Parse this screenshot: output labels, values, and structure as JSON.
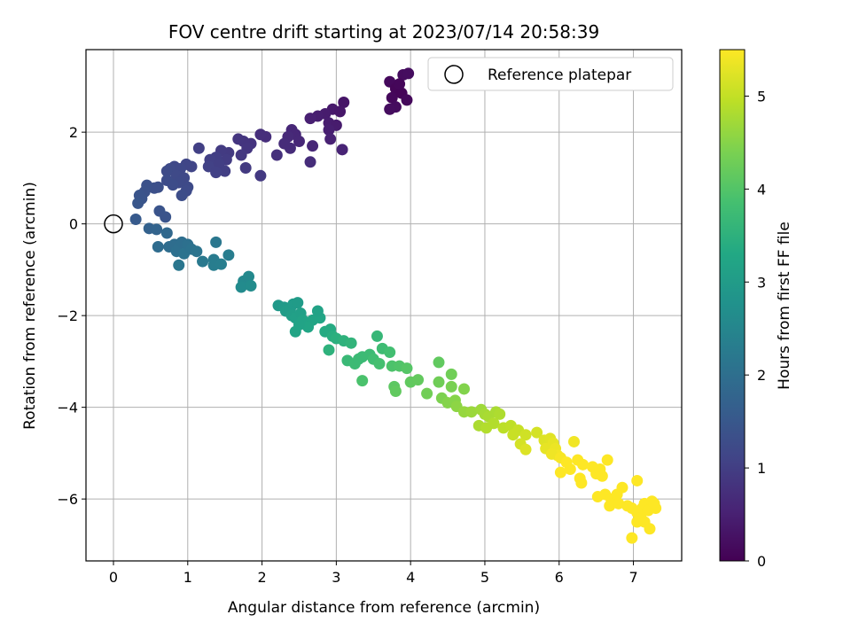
{
  "chart_data": {
    "type": "scatter",
    "title": "FOV centre drift starting at 2023/07/14 20:58:39",
    "xlabel": "Angular distance from reference (arcmin)",
    "ylabel": "Rotation from reference (arcmin)",
    "xlim": [
      -0.37,
      7.65
    ],
    "ylim": [
      -7.35,
      3.8
    ],
    "xticks": [
      0,
      1,
      2,
      3,
      4,
      5,
      6,
      7
    ],
    "yticks": [
      2,
      0,
      -2,
      -4,
      -6
    ],
    "xtick_labels": [
      "0",
      "1",
      "2",
      "3",
      "4",
      "5",
      "6",
      "7"
    ],
    "ytick_labels": [
      "2",
      "0",
      "−2",
      "−4",
      "−6"
    ],
    "grid": true,
    "legend": {
      "position": "top-right",
      "entries": [
        "Reference platepar"
      ]
    },
    "colorbar": {
      "label": "Hours from first FF file",
      "range": [
        0,
        5.5
      ],
      "ticks": [
        0,
        1,
        2,
        3,
        4,
        5
      ],
      "tick_labels": [
        "0",
        "1",
        "2",
        "3",
        "4",
        "5"
      ],
      "colormap": "viridis"
    },
    "reference_point": {
      "x": 0,
      "y": 0,
      "name": "Reference platepar"
    },
    "series": [
      {
        "columns": [
          "x",
          "y",
          "hours"
        ],
        "points": [
          [
            3.72,
            3.1
          ],
          [
            3.9,
            3.25
          ],
          [
            3.97,
            3.28
          ],
          [
            3.8,
            2.95
          ],
          [
            3.75,
            2.75
          ],
          [
            3.88,
            2.85
          ],
          [
            3.8,
            2.55
          ],
          [
            3.95,
            2.7
          ],
          [
            3.72,
            2.5
          ],
          [
            3.85,
            3.05
          ],
          [
            3.1,
            2.65
          ],
          [
            2.95,
            2.5
          ],
          [
            3.05,
            2.45
          ],
          [
            2.85,
            2.4
          ],
          [
            2.75,
            2.35
          ],
          [
            2.65,
            2.3
          ],
          [
            2.9,
            2.2
          ],
          [
            3.0,
            2.15
          ],
          [
            2.9,
            2.05
          ],
          [
            2.92,
            1.85
          ],
          [
            3.08,
            1.62
          ],
          [
            2.4,
            2.05
          ],
          [
            2.45,
            1.95
          ],
          [
            2.35,
            1.9
          ],
          [
            2.5,
            1.8
          ],
          [
            2.3,
            1.75
          ],
          [
            2.38,
            1.65
          ],
          [
            2.68,
            1.7
          ],
          [
            2.2,
            1.5
          ],
          [
            2.65,
            1.35
          ],
          [
            2.05,
            1.9
          ],
          [
            1.98,
            1.95
          ],
          [
            1.85,
            1.75
          ],
          [
            1.75,
            1.8
          ],
          [
            1.68,
            1.85
          ],
          [
            1.8,
            1.65
          ],
          [
            1.72,
            1.5
          ],
          [
            1.78,
            1.22
          ],
          [
            1.98,
            1.05
          ],
          [
            1.55,
            1.55
          ],
          [
            1.45,
            1.6
          ],
          [
            1.52,
            1.4
          ],
          [
            1.38,
            1.45
          ],
          [
            1.3,
            1.4
          ],
          [
            1.42,
            1.3
          ],
          [
            1.28,
            1.25
          ],
          [
            1.5,
            1.15
          ],
          [
            1.38,
            1.12
          ],
          [
            1.15,
            1.65
          ],
          [
            1.05,
            1.25
          ],
          [
            0.98,
            1.3
          ],
          [
            0.9,
            1.2
          ],
          [
            0.82,
            1.25
          ],
          [
            0.76,
            1.2
          ],
          [
            0.72,
            1.15
          ],
          [
            0.85,
            1.05
          ],
          [
            0.95,
            1.0
          ],
          [
            0.72,
            0.95
          ],
          [
            0.88,
            0.9
          ],
          [
            0.8,
            0.85
          ],
          [
            1.0,
            0.8
          ],
          [
            0.98,
            0.72
          ],
          [
            0.92,
            0.62
          ],
          [
            0.6,
            0.8
          ],
          [
            0.55,
            0.78
          ],
          [
            0.45,
            0.84
          ],
          [
            0.42,
            0.7
          ],
          [
            0.35,
            0.62
          ],
          [
            0.38,
            0.55
          ],
          [
            0.33,
            0.45
          ],
          [
            0.3,
            0.1
          ],
          [
            0.48,
            -0.1
          ],
          [
            0.58,
            -0.12
          ],
          [
            0.62,
            0.28
          ],
          [
            0.7,
            0.15
          ],
          [
            0.72,
            -0.2
          ],
          [
            0.6,
            -0.5
          ],
          [
            0.75,
            -0.5
          ],
          [
            0.82,
            -0.45
          ],
          [
            0.85,
            -0.6
          ],
          [
            0.88,
            -0.52
          ],
          [
            0.92,
            -0.4
          ],
          [
            0.95,
            -0.65
          ],
          [
            0.88,
            -0.9
          ],
          [
            1.0,
            -0.45
          ],
          [
            1.05,
            -0.55
          ],
          [
            1.12,
            -0.6
          ],
          [
            1.2,
            -0.82
          ],
          [
            1.35,
            -0.78
          ],
          [
            1.38,
            -0.4
          ],
          [
            1.35,
            -0.9
          ],
          [
            1.45,
            -0.88
          ],
          [
            1.55,
            -0.68
          ],
          [
            1.75,
            -1.25
          ],
          [
            1.82,
            -1.15
          ],
          [
            1.72,
            -1.38
          ],
          [
            1.85,
            -1.35
          ],
          [
            2.22,
            -1.78
          ],
          [
            2.3,
            -1.82
          ],
          [
            2.32,
            -1.9
          ],
          [
            2.38,
            -1.85
          ],
          [
            2.42,
            -1.75
          ],
          [
            2.48,
            -1.72
          ],
          [
            2.4,
            -2.0
          ],
          [
            2.45,
            -2.05
          ],
          [
            2.52,
            -1.95
          ],
          [
            2.55,
            -2.1
          ],
          [
            2.6,
            -2.15
          ],
          [
            2.68,
            -2.1
          ],
          [
            2.78,
            -2.05
          ],
          [
            2.75,
            -1.9
          ],
          [
            2.62,
            -2.25
          ],
          [
            2.5,
            -2.2
          ],
          [
            2.45,
            -2.35
          ],
          [
            2.85,
            -2.35
          ],
          [
            2.92,
            -2.3
          ],
          [
            2.95,
            -2.45
          ],
          [
            3.0,
            -2.5
          ],
          [
            3.1,
            -2.55
          ],
          [
            3.2,
            -2.6
          ],
          [
            2.9,
            -2.75
          ],
          [
            3.15,
            -2.98
          ],
          [
            3.25,
            -3.05
          ],
          [
            3.3,
            -2.95
          ],
          [
            3.35,
            -2.9
          ],
          [
            3.45,
            -2.85
          ],
          [
            3.5,
            -2.95
          ],
          [
            3.58,
            -3.05
          ],
          [
            3.62,
            -2.72
          ],
          [
            3.72,
            -2.8
          ],
          [
            3.55,
            -2.45
          ],
          [
            3.75,
            -3.1
          ],
          [
            3.85,
            -3.1
          ],
          [
            3.95,
            -3.15
          ],
          [
            4.0,
            -3.45
          ],
          [
            4.1,
            -3.4
          ],
          [
            3.78,
            -3.55
          ],
          [
            3.8,
            -3.65
          ],
          [
            3.35,
            -3.42
          ],
          [
            4.22,
            -3.7
          ],
          [
            4.38,
            -3.02
          ],
          [
            4.38,
            -3.45
          ],
          [
            4.55,
            -3.28
          ],
          [
            4.55,
            -3.55
          ],
          [
            4.72,
            -3.6
          ],
          [
            4.42,
            -3.8
          ],
          [
            4.5,
            -3.9
          ],
          [
            4.6,
            -3.85
          ],
          [
            4.62,
            -3.98
          ],
          [
            4.72,
            -4.1
          ],
          [
            4.82,
            -4.1
          ],
          [
            4.95,
            -4.05
          ],
          [
            5.0,
            -4.15
          ],
          [
            5.05,
            -4.2
          ],
          [
            5.15,
            -4.1
          ],
          [
            5.2,
            -4.15
          ],
          [
            4.92,
            -4.4
          ],
          [
            5.02,
            -4.45
          ],
          [
            5.12,
            -4.35
          ],
          [
            5.25,
            -4.45
          ],
          [
            5.35,
            -4.4
          ],
          [
            5.45,
            -4.5
          ],
          [
            5.38,
            -4.6
          ],
          [
            5.55,
            -4.6
          ],
          [
            5.48,
            -4.8
          ],
          [
            5.55,
            -4.92
          ],
          [
            5.7,
            -4.55
          ],
          [
            5.8,
            -4.72
          ],
          [
            5.82,
            -4.9
          ],
          [
            5.88,
            -4.68
          ],
          [
            5.92,
            -4.78
          ],
          [
            5.95,
            -4.9
          ],
          [
            5.98,
            -5.05
          ],
          [
            5.9,
            -5.02
          ],
          [
            6.02,
            -5.1
          ],
          [
            6.1,
            -5.2
          ],
          [
            6.15,
            -5.35
          ],
          [
            6.02,
            -5.42
          ],
          [
            6.2,
            -4.75
          ],
          [
            6.25,
            -5.15
          ],
          [
            6.32,
            -5.25
          ],
          [
            6.28,
            -5.55
          ],
          [
            6.3,
            -5.65
          ],
          [
            6.45,
            -5.3
          ],
          [
            6.5,
            -5.45
          ],
          [
            6.55,
            -5.35
          ],
          [
            6.58,
            -5.5
          ],
          [
            6.65,
            -5.15
          ],
          [
            6.52,
            -5.95
          ],
          [
            6.62,
            -5.9
          ],
          [
            6.7,
            -6.0
          ],
          [
            6.78,
            -5.9
          ],
          [
            6.85,
            -5.75
          ],
          [
            6.68,
            -6.15
          ],
          [
            6.8,
            -6.1
          ],
          [
            6.92,
            -6.15
          ],
          [
            6.98,
            -6.2
          ],
          [
            7.05,
            -6.3
          ],
          [
            7.1,
            -6.4
          ],
          [
            7.12,
            -6.2
          ],
          [
            7.15,
            -6.1
          ],
          [
            7.2,
            -6.25
          ],
          [
            7.25,
            -6.05
          ],
          [
            7.3,
            -6.2
          ],
          [
            7.28,
            -6.1
          ],
          [
            7.05,
            -5.6
          ],
          [
            7.05,
            -6.5
          ],
          [
            7.15,
            -6.5
          ],
          [
            7.22,
            -6.65
          ],
          [
            6.98,
            -6.85
          ]
        ]
      }
    ]
  }
}
